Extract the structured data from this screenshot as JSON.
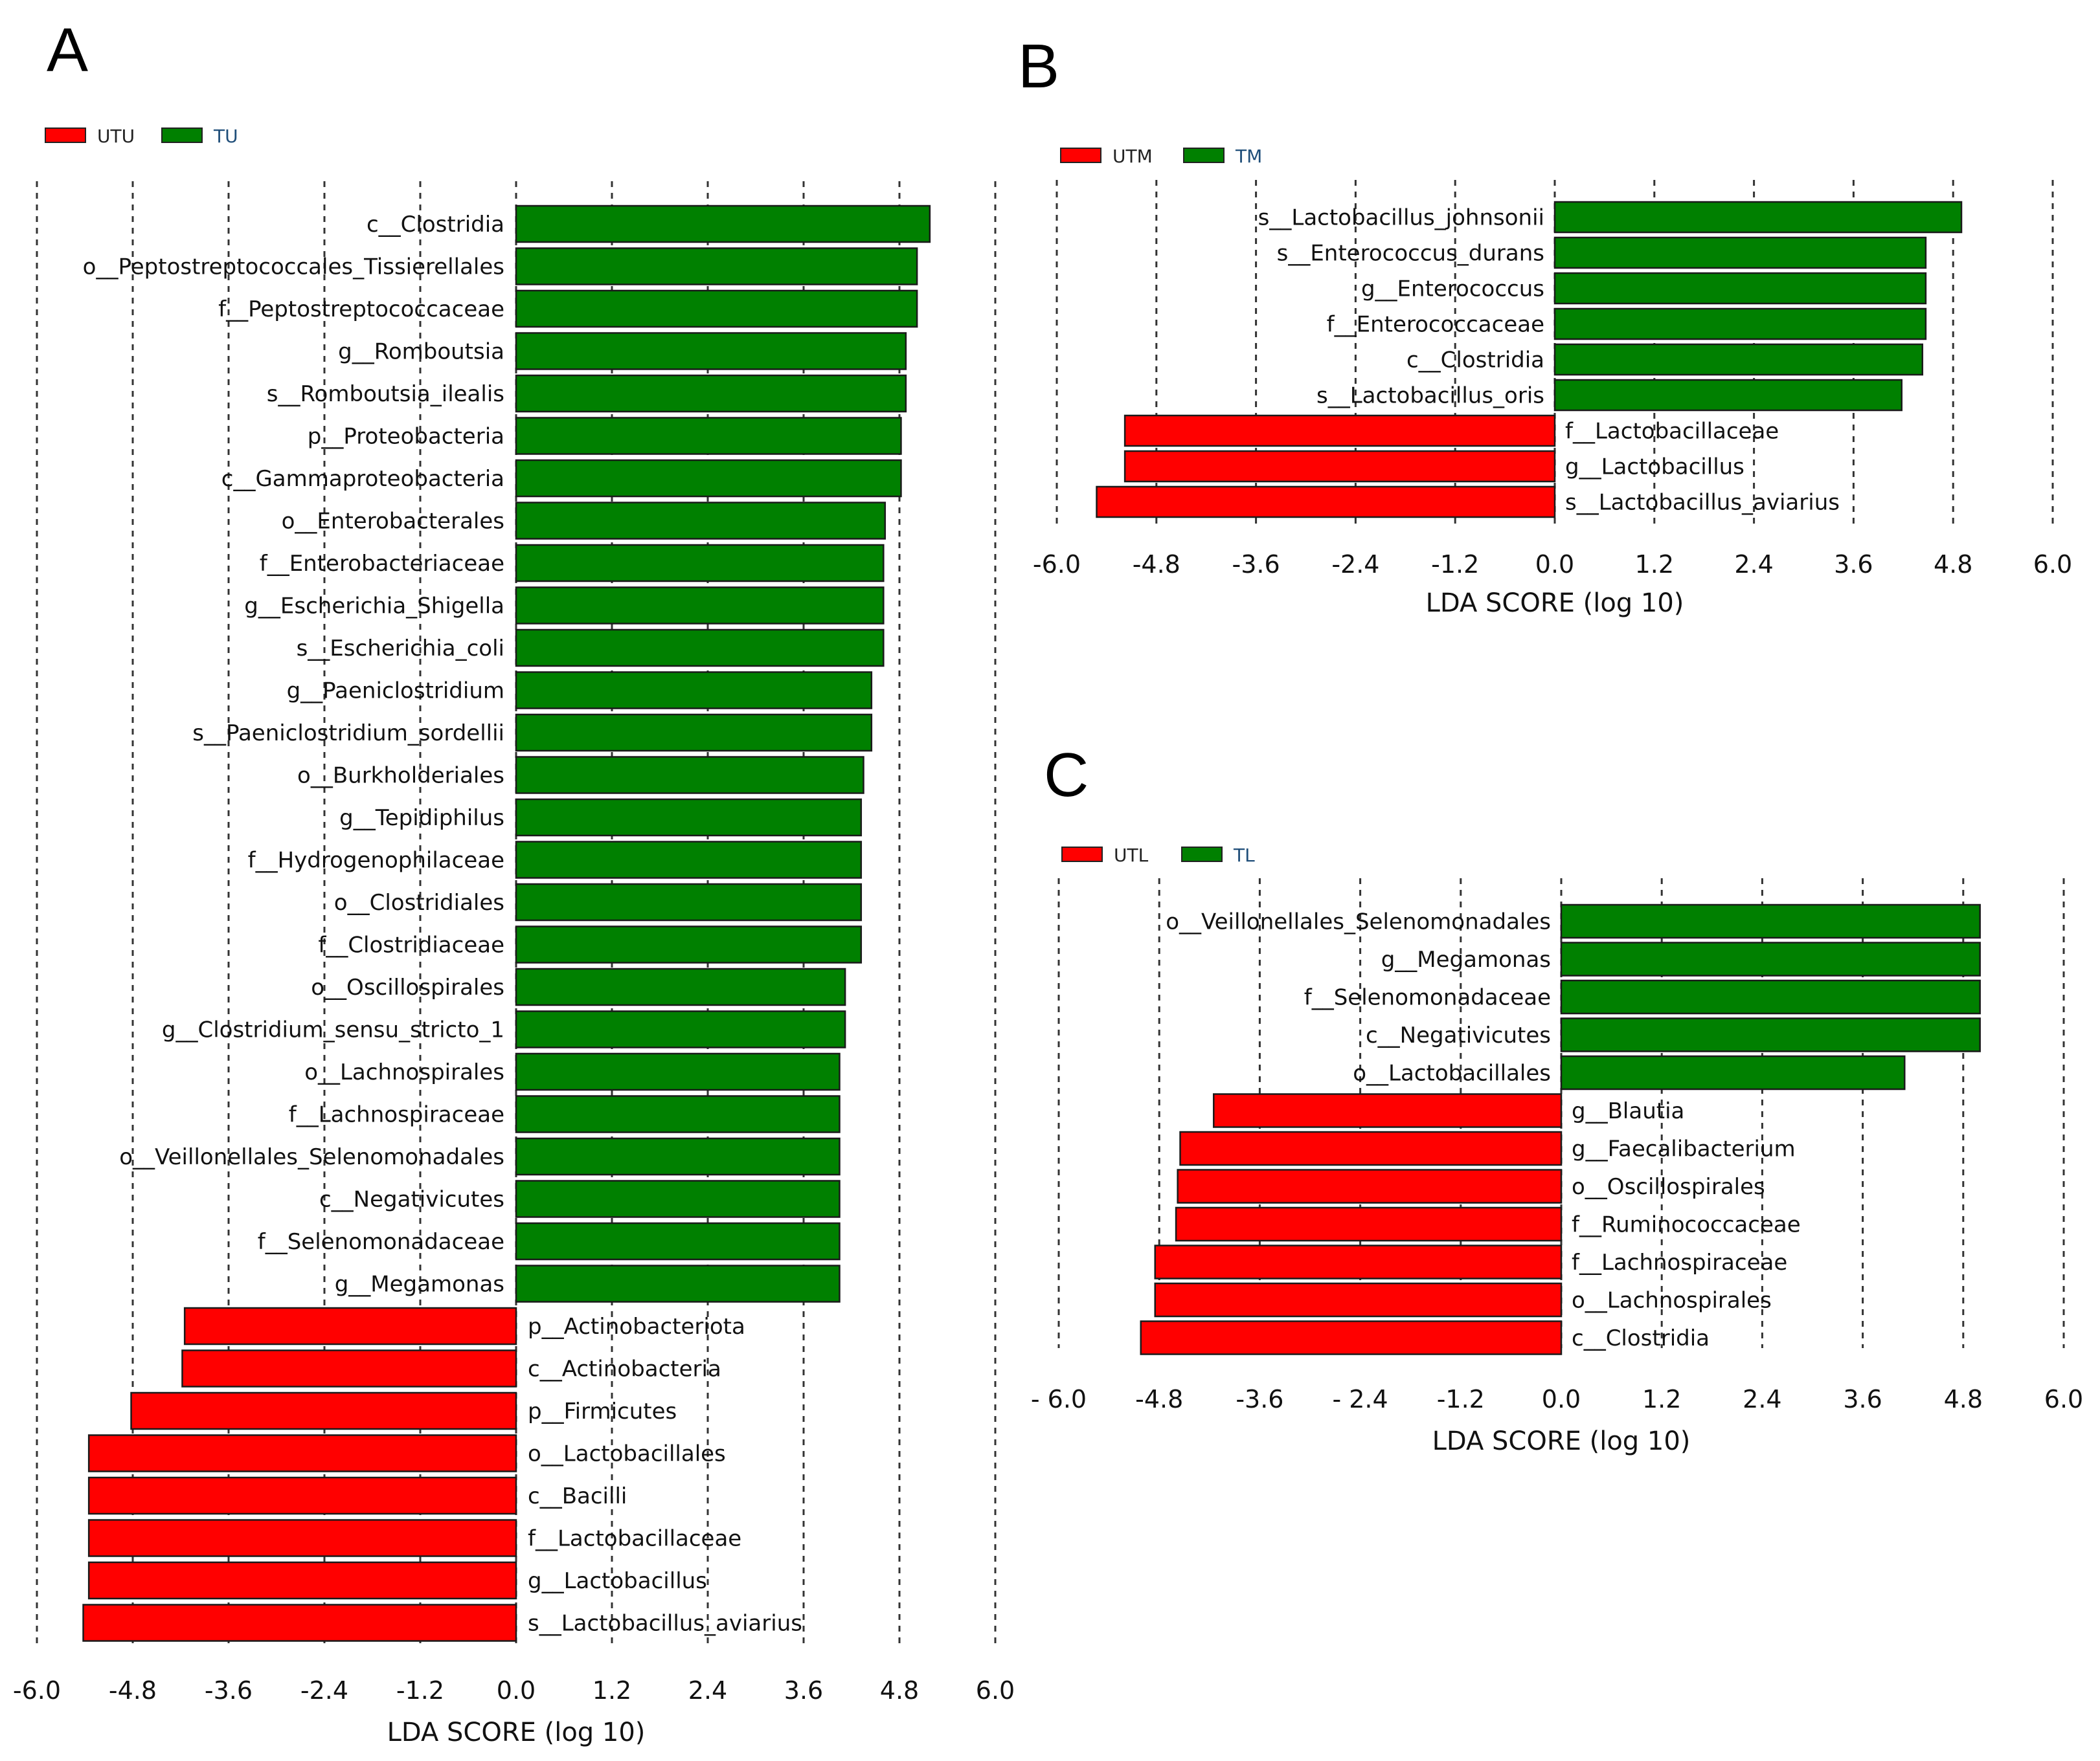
{
  "colors": {
    "up": "#008000",
    "down": "#ff0000",
    "legend_up_text": "#1f4e79",
    "legend_down_text": "#222222"
  },
  "chart_data": [
    {
      "panel": "A",
      "type": "bar",
      "orientation": "horizontal",
      "legend": [
        {
          "name": "UTU",
          "color": "#ff0000"
        },
        {
          "name": "TU",
          "color": "#008000"
        }
      ],
      "legend_position": "top-left",
      "xlabel": "LDA SCORE (log 10)",
      "xlim": [
        -6.0,
        6.0
      ],
      "xticks": [
        "-6.0",
        "-4.8",
        "-3.6",
        "-2.4",
        "-1.2",
        "0.0",
        "1.2",
        "2.4",
        "3.6",
        "4.8",
        "6.0"
      ],
      "grid": true,
      "categories": [
        "c__Clostridia",
        "o__Peptostreptococcales_Tissierellales",
        "f__Peptostreptococcaceae",
        "g__Romboutsia",
        "s__Romboutsia_ilealis",
        "p__Proteobacteria",
        "c__Gammaproteobacteria",
        "o__Enterobacterales",
        "f__Enterobacteriaceae",
        "g__Escherichia_Shigella",
        "s__Escherichia_coli",
        "g__Paeniclostridium",
        "s__Paeniclostridium_sordellii",
        "o__Burkholderiales",
        "g__Tepidiphilus",
        "f__Hydrogenophilaceae",
        "o__Clostridiales",
        "f__Clostridiaceae",
        "o__Oscillospirales",
        "g__Clostridium_sensu_stricto_1",
        "o__Lachnospirales",
        "f__Lachnospiraceae",
        "o__Veillonellales_Selenomonadales",
        "c__Negativicutes",
        "f__Selenomonadaceae",
        "g__Megamonas",
        "p__Actinobacteriota",
        "c__Actinobacteria",
        "p__Firmicutes",
        "o__Lactobacillales",
        "c__Bacilli",
        "f__Lactobacillaceae",
        "g__Lactobacillus",
        "s__Lactobacillus_aviarius"
      ],
      "values": [
        5.18,
        5.02,
        5.02,
        4.88,
        4.88,
        4.82,
        4.82,
        4.62,
        4.6,
        4.6,
        4.6,
        4.45,
        4.45,
        4.35,
        4.32,
        4.32,
        4.32,
        4.32,
        4.12,
        4.12,
        4.05,
        4.05,
        4.05,
        4.05,
        4.05,
        4.05,
        -4.15,
        -4.18,
        -4.82,
        -5.35,
        -5.35,
        -5.35,
        -5.35,
        -5.42
      ]
    },
    {
      "panel": "B",
      "type": "bar",
      "orientation": "horizontal",
      "legend": [
        {
          "name": "UTM",
          "color": "#ff0000"
        },
        {
          "name": "TM",
          "color": "#008000"
        }
      ],
      "legend_position": "top-left",
      "xlabel": "LDA SCORE (log 10)",
      "xlim": [
        -6.0,
        6.0
      ],
      "xticks": [
        "-6.0",
        "-4.8",
        "-3.6",
        "-2.4",
        "-1.2",
        "0.0",
        "1.2",
        "2.4",
        "3.6",
        "4.8",
        "6.0"
      ],
      "grid": true,
      "categories": [
        "s__Lactobacillus_johnsonii",
        "s__Enterococcus_durans",
        "g__Enterococcus",
        "f__Enterococcaceae",
        "c__Clostridia",
        "s__Lactobacillus_oris",
        "f__Lactobacillaceae",
        "g__Lactobacillus",
        "s__Lactobacillus_aviarius"
      ],
      "values": [
        4.9,
        4.47,
        4.47,
        4.47,
        4.43,
        4.18,
        -5.18,
        -5.18,
        -5.52
      ]
    },
    {
      "panel": "C",
      "type": "bar",
      "orientation": "horizontal",
      "legend": [
        {
          "name": "UTL",
          "color": "#ff0000"
        },
        {
          "name": "TL",
          "color": "#008000"
        }
      ],
      "legend_position": "top-left",
      "xlabel": "LDA SCORE (log 10)",
      "xlim": [
        -6.0,
        6.0
      ],
      "xticks": [
        "- 6.0",
        "-4.8",
        "-3.6",
        "- 2.4",
        "-1.2",
        "0.0",
        "1.2",
        "2.4",
        "3.6",
        "4.8",
        "6.0"
      ],
      "grid": true,
      "categories": [
        "o__Veillonellales_Selenomonadales",
        "g__Megamonas",
        "f__Selenomonadaceae",
        "c__Negativicutes",
        "o__Lactobacillales",
        "g__Blautia",
        "g__Faecalibacterium",
        "o__Oscillospirales",
        "f__Ruminococcaceae",
        "f__Lachnospiraceae",
        "o__Lachnospirales",
        "c__Clostridia"
      ],
      "values": [
        5.0,
        5.0,
        5.0,
        5.0,
        4.1,
        -4.15,
        -4.55,
        -4.58,
        -4.6,
        -4.85,
        -4.85,
        -5.02
      ]
    }
  ]
}
